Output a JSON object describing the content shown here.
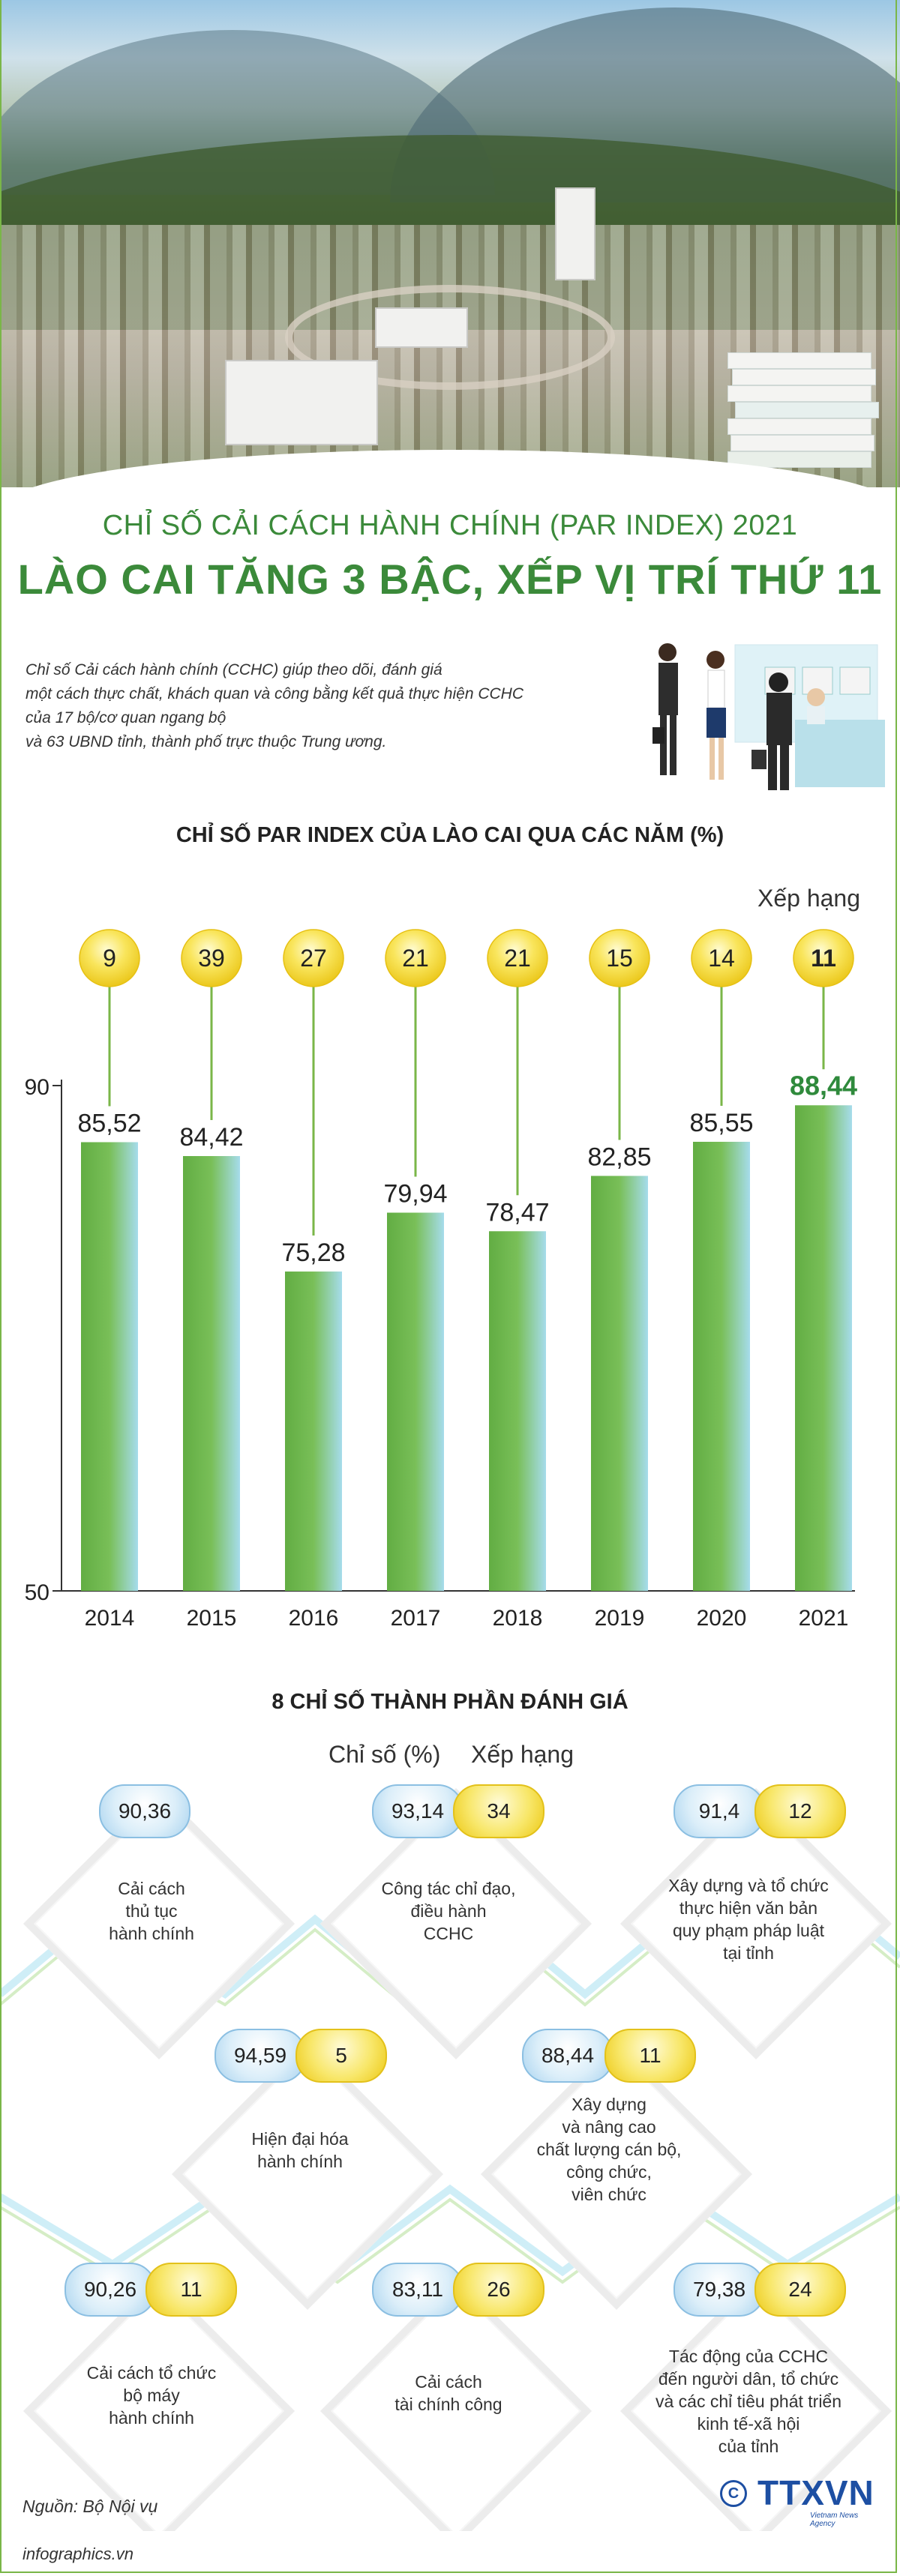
{
  "header": {
    "title_line1": "CHỈ SỐ CẢI CÁCH HÀNH CHÍNH (PAR INDEX) 2021",
    "title_line2": "LÀO CAI TĂNG 3 BẬC, XẾP VỊ TRÍ THỨ 11",
    "intro_lines": [
      "Chỉ số Cải cách hành chính (CCHC) giúp theo dõi, đánh giá",
      "một cách thực chất, khách quan và công bằng kết quả thực hiện CCHC",
      "của 17 bộ/cơ quan ngang bộ",
      "và 63 UBND tỉnh, thành phố trực thuộc Trung ương."
    ]
  },
  "chart_section": {
    "title": "CHỈ SỐ PAR INDEX CỦA LÀO CAI QUA CÁC NĂM (%)",
    "rank_label": "Xếp hạng"
  },
  "chart_data": {
    "type": "bar",
    "title": "CHỈ SỐ PAR INDEX CỦA LÀO CAI QUA CÁC NĂM (%)",
    "categories": [
      "2014",
      "2015",
      "2016",
      "2017",
      "2018",
      "2019",
      "2020",
      "2021"
    ],
    "values": [
      85.52,
      84.42,
      75.28,
      79.94,
      78.47,
      82.85,
      85.55,
      88.44
    ],
    "value_labels": [
      "85,52",
      "84,42",
      "75,28",
      "79,94",
      "78,47",
      "82,85",
      "85,55",
      "88,44"
    ],
    "ranks": [
      "9",
      "39",
      "27",
      "21",
      "21",
      "15",
      "14",
      "11"
    ],
    "rank_label": "Xếp hạng",
    "ylim": [
      50,
      90
    ],
    "y_ticks": [
      "50",
      "90"
    ],
    "highlight_index": 7,
    "colors": {
      "bar_top": "#6db54a",
      "bar_bottom": "#8fd0e6",
      "highlight_text": "#2f8a3c",
      "rank_circle": "#f3d21e",
      "axis": "#333333"
    }
  },
  "components": {
    "title": "8 CHỈ SỐ THÀNH PHẦN ĐÁNH GIÁ",
    "legend_index": "Chỉ số (%)",
    "legend_rank": "Xếp hạng",
    "items": [
      {
        "index": "90,36",
        "rank": "",
        "lines": [
          "Cải cách",
          "thủ tục",
          "hành chính"
        ]
      },
      {
        "index": "93,14",
        "rank": "34",
        "lines": [
          "Công tác chỉ đạo,",
          "điều hành",
          "CCHC"
        ]
      },
      {
        "index": "91,4",
        "rank": "12",
        "lines": [
          "Xây dựng và tổ chức",
          "thực hiện văn bản",
          "quy phạm pháp luật",
          "tại tỉnh"
        ]
      },
      {
        "index": "94,59",
        "rank": "5",
        "lines": [
          "Hiện đại hóa",
          "hành chính"
        ]
      },
      {
        "index": "88,44",
        "rank": "11",
        "lines": [
          "Xây dựng",
          "và nâng cao",
          "chất lượng cán bộ,",
          "công chức,",
          "viên chức"
        ]
      },
      {
        "index": "90,26",
        "rank": "11",
        "lines": [
          "Cải cách tổ chức",
          "bộ máy",
          "hành chính"
        ]
      },
      {
        "index": "83,11",
        "rank": "26",
        "lines": [
          "Cải cách",
          "tài chính công"
        ]
      },
      {
        "index": "79,38",
        "rank": "24",
        "lines": [
          "Tác động của CCHC",
          "đến người dân, tổ chức",
          "và các chỉ tiêu phát triển",
          "kinh tế-xã hội",
          "của tỉnh"
        ]
      }
    ]
  },
  "footer": {
    "source": "Nguồn: Bộ Nội vụ",
    "url": "infographics.vn",
    "logo_text": "TTXVN",
    "logo_symbol": "C",
    "logo_sub": "Vietnam News Agency"
  },
  "colors": {
    "title_green": "#3b8a3a",
    "border_green": "#7ab648"
  }
}
